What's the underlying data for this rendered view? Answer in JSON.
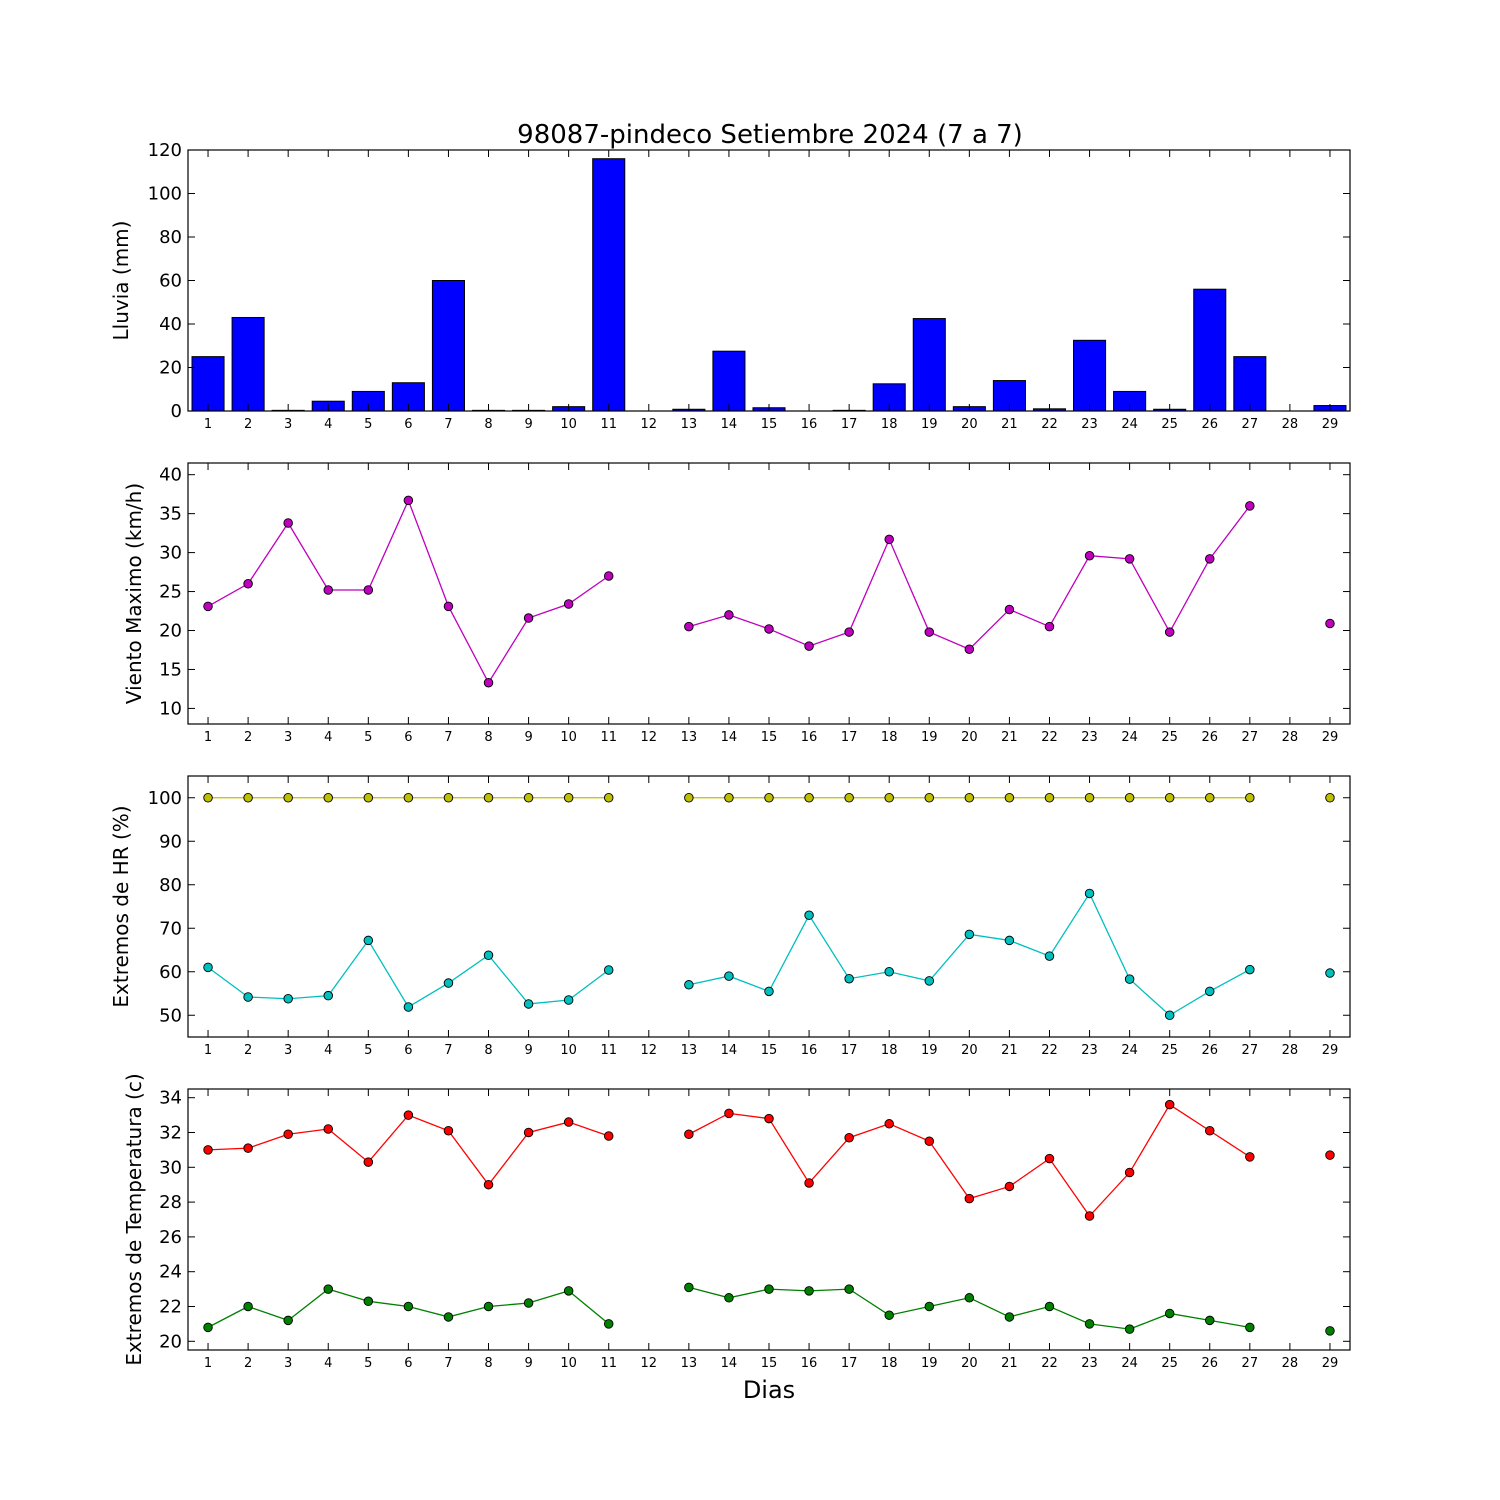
{
  "chart_data": [
    {
      "type": "bar",
      "title": "98087-pindeco Setiembre 2024  (7 a 7)",
      "ylabel": "Lluvia (mm)",
      "xlabel": "",
      "x": [
        1,
        2,
        3,
        4,
        5,
        6,
        7,
        8,
        9,
        10,
        11,
        12,
        13,
        14,
        15,
        16,
        17,
        18,
        19,
        20,
        21,
        22,
        23,
        24,
        25,
        26,
        27,
        28,
        29
      ],
      "values": [
        25,
        43,
        0.3,
        4.5,
        9,
        13,
        60,
        0.3,
        0.3,
        2,
        116,
        null,
        0.8,
        27.5,
        1.5,
        null,
        0.3,
        12.5,
        42.5,
        2,
        14,
        1,
        32.5,
        9,
        0.8,
        56,
        25,
        null,
        2.5
      ],
      "ylim": [
        0,
        120
      ],
      "yticks": [
        0,
        20,
        40,
        60,
        80,
        100,
        120
      ],
      "color": "#0000ff"
    },
    {
      "type": "line",
      "title": "",
      "ylabel": "Viento Maximo (km/h)",
      "xlabel": "",
      "x": [
        1,
        2,
        3,
        4,
        5,
        6,
        7,
        8,
        9,
        10,
        11,
        12,
        13,
        14,
        15,
        16,
        17,
        18,
        19,
        20,
        21,
        22,
        23,
        24,
        25,
        26,
        27,
        28,
        29
      ],
      "series": [
        {
          "values": [
            23.1,
            26,
            33.8,
            25.2,
            25.2,
            36.7,
            23.1,
            13.3,
            21.6,
            23.4,
            27,
            null,
            20.5,
            22,
            20.2,
            18,
            19.8,
            31.7,
            19.8,
            17.6,
            22.7,
            20.5,
            29.6,
            29.2,
            19.8,
            29.2,
            36,
            null,
            20.9
          ],
          "color": "#bf00bf"
        }
      ],
      "ylim": [
        8,
        41.5
      ],
      "yticks": [
        10,
        15,
        20,
        25,
        30,
        35,
        40
      ]
    },
    {
      "type": "line",
      "title": "",
      "ylabel": "Extremos de HR (%)",
      "xlabel": "",
      "x": [
        1,
        2,
        3,
        4,
        5,
        6,
        7,
        8,
        9,
        10,
        11,
        12,
        13,
        14,
        15,
        16,
        17,
        18,
        19,
        20,
        21,
        22,
        23,
        24,
        25,
        26,
        27,
        28,
        29
      ],
      "series": [
        {
          "values": [
            100,
            100,
            100,
            100,
            100,
            100,
            100,
            100,
            100,
            100,
            100,
            null,
            100,
            100,
            100,
            100,
            100,
            100,
            100,
            100,
            100,
            100,
            100,
            100,
            100,
            100,
            100,
            null,
            100
          ],
          "color": "#bfbf00"
        },
        {
          "values": [
            61,
            54.2,
            53.8,
            54.5,
            67.2,
            51.9,
            57.4,
            63.8,
            52.6,
            53.5,
            60.4,
            null,
            57,
            59,
            55.5,
            73,
            58.4,
            60,
            57.9,
            68.6,
            67.2,
            63.6,
            78,
            58.3,
            50,
            55.5,
            60.5,
            null,
            59.7
          ],
          "color": "#00bfbf"
        }
      ],
      "ylim": [
        45,
        105
      ],
      "yticks": [
        50,
        60,
        70,
        80,
        90,
        100
      ]
    },
    {
      "type": "line",
      "title": "",
      "ylabel": "Extremos de Temperatura (c)",
      "xlabel": "Dias",
      "x": [
        1,
        2,
        3,
        4,
        5,
        6,
        7,
        8,
        9,
        10,
        11,
        12,
        13,
        14,
        15,
        16,
        17,
        18,
        19,
        20,
        21,
        22,
        23,
        24,
        25,
        26,
        27,
        28,
        29
      ],
      "series": [
        {
          "values": [
            31,
            31.1,
            31.9,
            32.2,
            30.3,
            33,
            32.1,
            29,
            32,
            32.6,
            31.8,
            null,
            31.9,
            33.1,
            32.8,
            29.1,
            31.7,
            32.5,
            31.5,
            28.2,
            28.9,
            30.5,
            27.2,
            29.7,
            33.6,
            32.1,
            30.6,
            null,
            30.7
          ],
          "color": "#ff0000"
        },
        {
          "values": [
            20.8,
            22,
            21.2,
            23,
            22.3,
            22,
            21.4,
            22,
            22.2,
            22.9,
            21,
            null,
            23.1,
            22.5,
            23,
            22.9,
            23,
            21.5,
            22,
            22.5,
            21.4,
            22,
            21,
            20.7,
            21.6,
            21.2,
            20.8,
            null,
            20.6
          ],
          "color": "#008000"
        }
      ],
      "ylim": [
        19.5,
        34.5
      ],
      "yticks": [
        20,
        22,
        24,
        26,
        28,
        30,
        32,
        34
      ]
    }
  ]
}
